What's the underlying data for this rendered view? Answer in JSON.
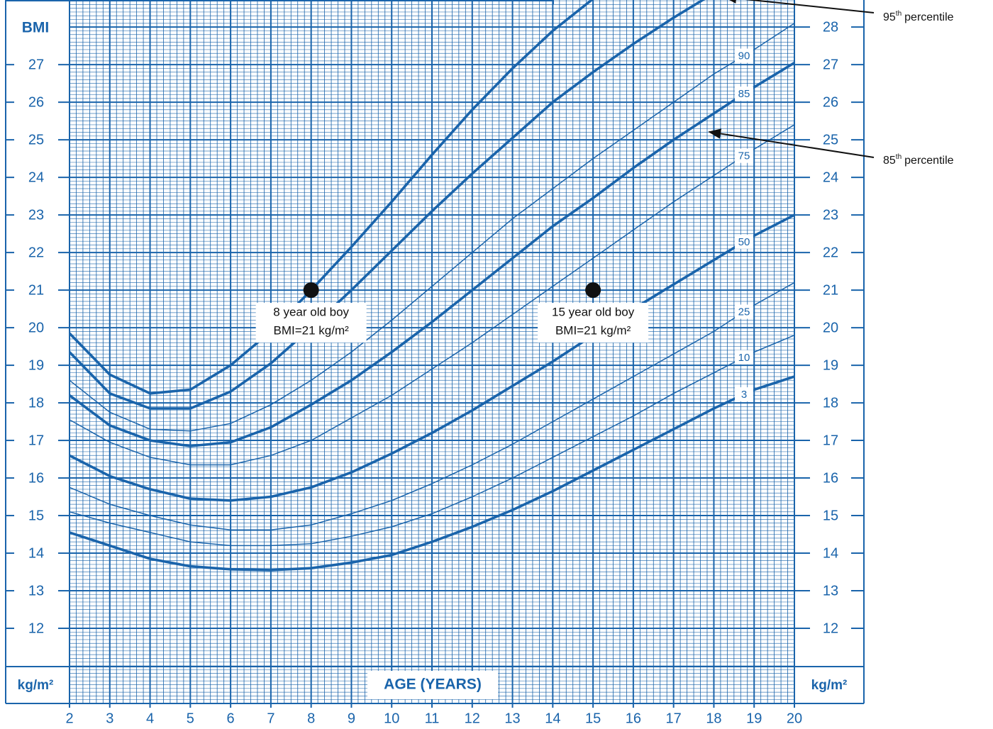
{
  "chart_data": {
    "type": "line",
    "y_label": "BMI",
    "unit_label": "kg/m²",
    "x_label": "AGE (YEARS)",
    "x": [
      2,
      3,
      4,
      5,
      6,
      7,
      8,
      9,
      10,
      11,
      12,
      13,
      14,
      15,
      16,
      17,
      18,
      19,
      20
    ],
    "series": [
      {
        "name": "3",
        "weight": "bold",
        "values": [
          14.55,
          14.2,
          13.85,
          13.65,
          13.57,
          13.55,
          13.6,
          13.75,
          13.95,
          14.3,
          14.7,
          15.15,
          15.65,
          16.2,
          16.75,
          17.3,
          17.85,
          18.35,
          18.7
        ]
      },
      {
        "name": "10",
        "weight": "normal",
        "values": [
          15.1,
          14.8,
          14.55,
          14.3,
          14.2,
          14.2,
          14.25,
          14.45,
          14.7,
          15.05,
          15.5,
          16.0,
          16.55,
          17.1,
          17.65,
          18.25,
          18.8,
          19.35,
          19.8
        ]
      },
      {
        "name": "25",
        "weight": "normal",
        "values": [
          15.75,
          15.3,
          15.0,
          14.75,
          14.62,
          14.62,
          14.75,
          15.05,
          15.4,
          15.85,
          16.35,
          16.9,
          17.5,
          18.1,
          18.7,
          19.3,
          19.9,
          20.6,
          21.2
        ]
      },
      {
        "name": "50",
        "weight": "bold",
        "values": [
          16.6,
          16.05,
          15.7,
          15.45,
          15.4,
          15.5,
          15.75,
          16.15,
          16.65,
          17.2,
          17.8,
          18.45,
          19.1,
          19.8,
          20.5,
          21.15,
          21.8,
          22.45,
          23.0
        ]
      },
      {
        "name": "75",
        "weight": "normal",
        "values": [
          17.55,
          16.95,
          16.55,
          16.35,
          16.35,
          16.6,
          17.0,
          17.6,
          18.2,
          18.9,
          19.6,
          20.35,
          21.1,
          21.85,
          22.6,
          23.35,
          24.05,
          24.75,
          25.4
        ]
      },
      {
        "name": "85",
        "weight": "bold",
        "values": [
          18.2,
          17.4,
          17.0,
          16.85,
          16.95,
          17.35,
          17.95,
          18.6,
          19.35,
          20.15,
          21.0,
          21.85,
          22.7,
          23.45,
          24.25,
          25.0,
          25.7,
          26.4,
          27.05
        ]
      },
      {
        "name": "90",
        "weight": "normal",
        "values": [
          18.6,
          17.75,
          17.3,
          17.25,
          17.45,
          17.95,
          18.6,
          19.35,
          20.2,
          21.1,
          22.0,
          22.9,
          23.7,
          24.5,
          25.25,
          26.0,
          26.75,
          27.4,
          28.1
        ]
      },
      {
        "weight": "bold",
        "values": [
          19.35,
          18.25,
          17.85,
          17.85,
          18.3,
          19.05,
          20.0,
          21.0,
          22.05,
          23.1,
          24.1,
          25.05,
          26.0,
          26.8,
          27.55,
          28.25,
          28.9,
          null,
          null
        ]
      },
      {
        "weight": "bold",
        "values": [
          19.85,
          18.75,
          18.25,
          18.35,
          19.0,
          19.9,
          21.0,
          22.15,
          23.35,
          24.6,
          25.8,
          26.9,
          27.9,
          28.75,
          null,
          null,
          null,
          null,
          null
        ]
      }
    ],
    "color": "#1a64ab",
    "points": [
      {
        "x": 8,
        "y": 21,
        "label": [
          "8 year old boy",
          "BMI=21 kg/m²"
        ]
      },
      {
        "x": 15,
        "y": 21,
        "label": [
          "15 year old boy",
          "BMI=21 kg/m²"
        ]
      }
    ],
    "annotations": [
      {
        "text": "95",
        "sup": "th",
        "suffix": "percentile"
      },
      {
        "text": "85",
        "sup": "th",
        "suffix": "percentile"
      }
    ],
    "xlim": [
      2,
      20
    ],
    "ylim": [
      10,
      28.72
    ],
    "xticks": [
      2,
      3,
      4,
      5,
      6,
      7,
      8,
      9,
      10,
      11,
      12,
      13,
      14,
      15,
      16,
      17,
      18,
      19,
      20
    ],
    "yticks": [
      12,
      13,
      14,
      15,
      16,
      17,
      18,
      19,
      20,
      21,
      22,
      23,
      24,
      25,
      26,
      27,
      28
    ],
    "grid": true
  }
}
